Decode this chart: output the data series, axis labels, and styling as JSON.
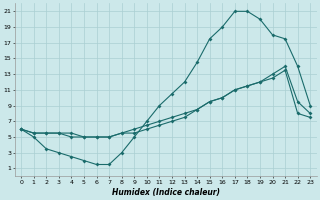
{
  "xlabel": "Humidex (Indice chaleur)",
  "bg_color": "#cce8ea",
  "grid_color": "#aacfd2",
  "line_color": "#1a6b6b",
  "xlim": [
    -0.5,
    23.5
  ],
  "ylim": [
    0,
    22
  ],
  "xticks": [
    0,
    1,
    2,
    3,
    4,
    5,
    6,
    7,
    8,
    9,
    10,
    11,
    12,
    13,
    14,
    15,
    16,
    17,
    18,
    19,
    20,
    21,
    22,
    23
  ],
  "yticks": [
    1,
    3,
    5,
    7,
    9,
    11,
    13,
    15,
    17,
    19,
    21
  ],
  "line1_x": [
    0,
    1,
    2,
    3,
    4,
    5,
    6,
    7,
    8,
    9,
    10,
    11,
    12,
    13,
    14,
    15,
    16,
    17,
    18,
    19,
    20,
    21,
    22,
    23
  ],
  "line1_y": [
    6,
    5,
    3.5,
    3,
    2.5,
    2,
    1.5,
    1.5,
    3,
    5,
    7,
    9,
    10.5,
    12,
    14.5,
    17.5,
    19,
    21,
    21,
    20,
    18,
    17.5,
    14,
    9
  ],
  "line2_x": [
    0,
    1,
    2,
    3,
    4,
    5,
    6,
    7,
    8,
    9,
    10,
    11,
    12,
    13,
    14,
    15,
    16,
    17,
    18,
    19,
    20,
    21,
    22,
    23
  ],
  "line2_y": [
    6,
    5.5,
    5.5,
    5.5,
    5.5,
    5,
    5,
    5,
    5.5,
    6,
    6.5,
    7,
    7.5,
    8,
    8.5,
    9.5,
    10,
    11,
    11.5,
    12,
    13,
    14,
    9.5,
    8
  ],
  "line3_x": [
    0,
    1,
    2,
    3,
    4,
    5,
    6,
    7,
    8,
    9,
    10,
    11,
    12,
    13,
    14,
    15,
    16,
    17,
    18,
    19,
    20,
    21,
    22,
    23
  ],
  "line3_y": [
    6,
    5.5,
    5.5,
    5.5,
    5,
    5,
    5,
    5,
    5.5,
    5.5,
    6,
    6.5,
    7,
    7.5,
    8.5,
    9.5,
    10,
    11,
    11.5,
    12,
    12.5,
    13.5,
    8,
    7.5
  ]
}
